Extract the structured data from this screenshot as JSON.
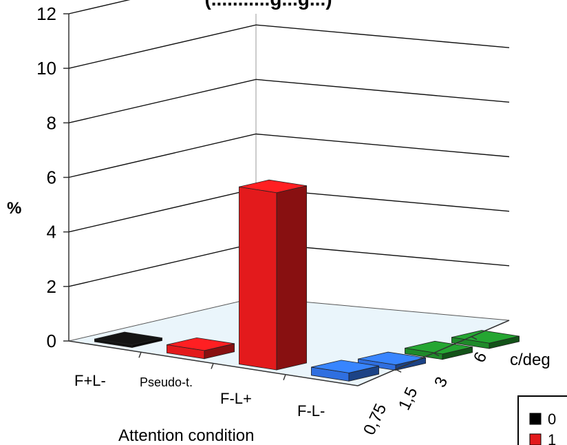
{
  "chart_data": {
    "type": "bar",
    "variant": "3d-bar",
    "title": "(...........g...g...)",
    "ylabel": "%",
    "xlabel": "Attention condition",
    "zlabel": "c/deg",
    "ylim": [
      0,
      12
    ],
    "yticks": [
      "0",
      "2",
      "4",
      "6",
      "8",
      "10",
      "12"
    ],
    "categories": [
      "F+L-",
      "Pseudo-t.",
      "F-L+",
      "F-L-"
    ],
    "depth_categories": [
      "0,75",
      "1,5",
      "3",
      "6"
    ],
    "grid": true,
    "legend_position": "bottom-right",
    "legend": [
      {
        "label": "0",
        "color": "#000000"
      },
      {
        "label": "1",
        "color": "#e31a1c"
      }
    ],
    "bars": [
      {
        "category": "F+L-",
        "frequency": "0,75",
        "value": 0.1,
        "color": "#111111"
      },
      {
        "category": "Pseudo-t.",
        "frequency": "0,75",
        "value": 0.3,
        "color": "#e31a1c"
      },
      {
        "category": "F-L+",
        "frequency": "0,75",
        "value": 6.5,
        "color": "#e31a1c"
      },
      {
        "category": "F-L-",
        "frequency": "0,75",
        "value": 0.3,
        "color": "#2f6fe0"
      },
      {
        "category": "F-L-",
        "frequency": "1,5",
        "value": 0.2,
        "color": "#2f6fe0"
      },
      {
        "category": "F-L-",
        "frequency": "3",
        "value": 0.2,
        "color": "#1f8a2a"
      },
      {
        "category": "F-L-",
        "frequency": "6",
        "value": 0.2,
        "color": "#1f8a2a"
      }
    ]
  }
}
